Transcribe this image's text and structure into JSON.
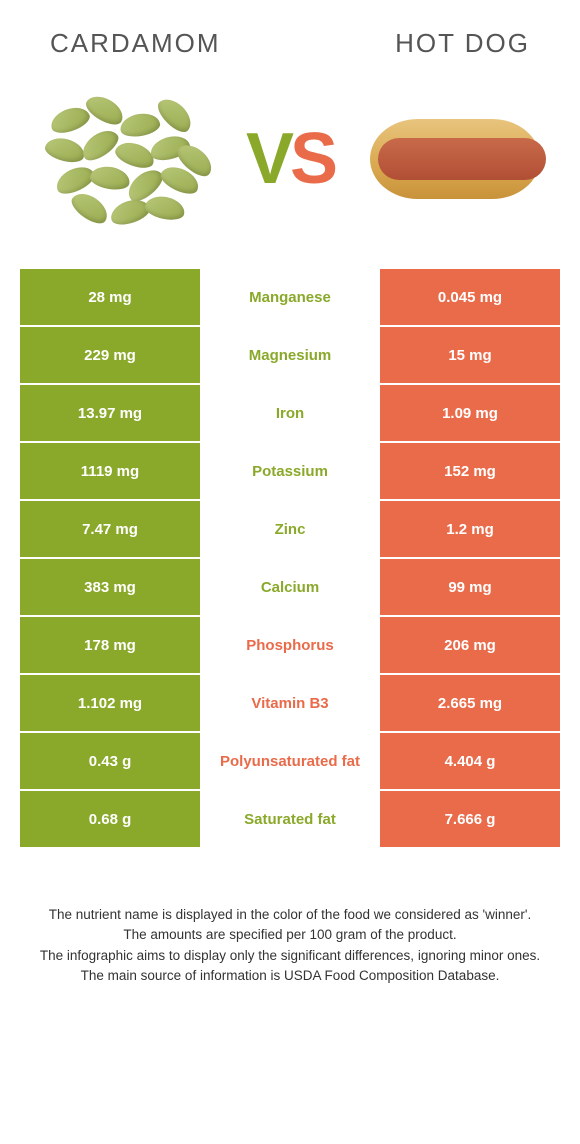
{
  "header": {
    "left": "CARDAMOM",
    "right": "HOT DOG"
  },
  "vs": {
    "v": "V",
    "s": "S"
  },
  "colors": {
    "left": "#8aa92a",
    "right": "#e96b4a",
    "background": "#ffffff"
  },
  "rows": [
    {
      "left": "28 mg",
      "label": "Manganese",
      "right": "0.045 mg",
      "winner": "left"
    },
    {
      "left": "229 mg",
      "label": "Magnesium",
      "right": "15 mg",
      "winner": "left"
    },
    {
      "left": "13.97 mg",
      "label": "Iron",
      "right": "1.09 mg",
      "winner": "left"
    },
    {
      "left": "1119 mg",
      "label": "Potassium",
      "right": "152 mg",
      "winner": "left"
    },
    {
      "left": "7.47 mg",
      "label": "Zinc",
      "right": "1.2 mg",
      "winner": "left"
    },
    {
      "left": "383 mg",
      "label": "Calcium",
      "right": "99 mg",
      "winner": "left"
    },
    {
      "left": "178 mg",
      "label": "Phosphorus",
      "right": "206 mg",
      "winner": "right"
    },
    {
      "left": "1.102 mg",
      "label": "Vitamin B3",
      "right": "2.665 mg",
      "winner": "right"
    },
    {
      "left": "0.43 g",
      "label": "Polyunsaturated fat",
      "right": "4.404 g",
      "winner": "right"
    },
    {
      "left": "0.68 g",
      "label": "Saturated fat",
      "right": "7.666 g",
      "winner": "left"
    }
  ],
  "footer": {
    "l1": "The nutrient name is displayed in the color of the food we considered as 'winner'.",
    "l2": "The amounts are specified per 100 gram of the product.",
    "l3": "The infographic aims to display only the significant differences, ignoring minor ones.",
    "l4": "The main source of information is USDA Food Composition Database."
  },
  "pods": [
    {
      "l": 10,
      "t": 20,
      "r": -20
    },
    {
      "l": 45,
      "t": 10,
      "r": 30
    },
    {
      "l": 80,
      "t": 25,
      "r": -10
    },
    {
      "l": 115,
      "t": 15,
      "r": 45
    },
    {
      "l": 5,
      "t": 50,
      "r": 15
    },
    {
      "l": 40,
      "t": 45,
      "r": -35
    },
    {
      "l": 75,
      "t": 55,
      "r": 20
    },
    {
      "l": 110,
      "t": 48,
      "r": -15
    },
    {
      "l": 135,
      "t": 60,
      "r": 40
    },
    {
      "l": 15,
      "t": 80,
      "r": -25
    },
    {
      "l": 50,
      "t": 78,
      "r": 10
    },
    {
      "l": 85,
      "t": 85,
      "r": -40
    },
    {
      "l": 120,
      "t": 80,
      "r": 25
    },
    {
      "l": 30,
      "t": 108,
      "r": 35
    },
    {
      "l": 70,
      "t": 112,
      "r": -18
    },
    {
      "l": 105,
      "t": 108,
      "r": 12
    }
  ]
}
